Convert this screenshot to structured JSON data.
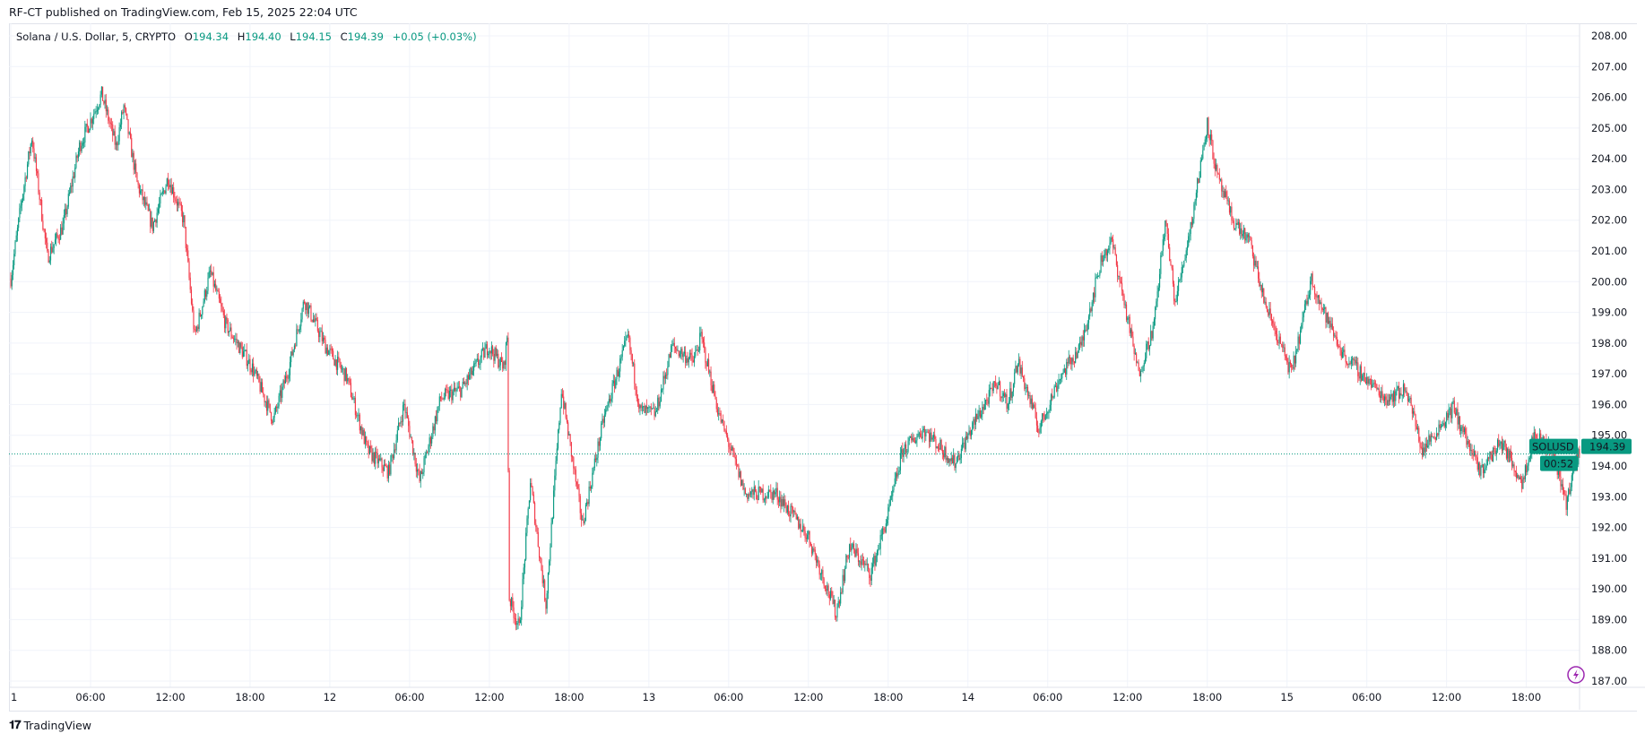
{
  "header": {
    "published": "RF-CT published on TradingView.com, Feb 15, 2025 22:04 UTC"
  },
  "legend": {
    "symbol": "Solana / U.S. Dollar, 5, CRYPTO",
    "open_label": "O",
    "open": "194.34",
    "high_label": "H",
    "high": "194.40",
    "low_label": "L",
    "low": "194.15",
    "close_label": "C",
    "close": "194.39",
    "change": "+0.05 (+0.03%)"
  },
  "price_tag": {
    "symbol": "SOLUSD",
    "price": "194.39",
    "countdown": "00:52"
  },
  "footer": {
    "brand": "TradingView",
    "logo_mark": "TV"
  },
  "colors": {
    "up": "#089981",
    "down": "#F23645",
    "grid": "#f0f3fa",
    "alert_icon": "#9c27b0"
  },
  "icons": {
    "alert": "lightning-icon"
  },
  "chart_data": {
    "type": "candlestick",
    "interval": "5 min",
    "ylim": [
      187,
      208
    ],
    "y_ticks": [
      "187.00",
      "188.00",
      "189.00",
      "190.00",
      "191.00",
      "192.00",
      "193.00",
      "194.00",
      "195.00",
      "196.00",
      "197.00",
      "198.00",
      "199.00",
      "200.00",
      "201.00",
      "202.00",
      "203.00",
      "204.00",
      "205.00",
      "206.00",
      "207.00",
      "208.00"
    ],
    "x_ticks": [
      "1",
      "06:00",
      "12:00",
      "18:00",
      "12",
      "06:00",
      "12:00",
      "18:00",
      "13",
      "06:00",
      "12:00",
      "18:00",
      "14",
      "06:00",
      "12:00",
      "18:00",
      "15",
      "06:00",
      "12:00",
      "18:00"
    ],
    "grid": true,
    "current_price": 194.39,
    "price_path": [
      [
        "11 00:00",
        200.1
      ],
      [
        "11 00:50",
        202.7
      ],
      [
        "11 01:35",
        204.7
      ],
      [
        "11 02:45",
        200.8
      ],
      [
        "11 03:55",
        201.8
      ],
      [
        "11 05:10",
        204.4
      ],
      [
        "11 06:50",
        206.1
      ],
      [
        "11 07:55",
        204.4
      ],
      [
        "11 08:30",
        205.7
      ],
      [
        "11 09:30",
        203.2
      ],
      [
        "11 10:40",
        201.8
      ],
      [
        "11 11:50",
        203.4
      ],
      [
        "11 13:00",
        202.0
      ],
      [
        "11 13:50",
        198.2
      ],
      [
        "11 15:00",
        200.3
      ],
      [
        "11 16:10",
        198.6
      ],
      [
        "11 18:10",
        197.2
      ],
      [
        "11 19:45",
        195.5
      ],
      [
        "11 20:55",
        197.2
      ],
      [
        "11 22:05",
        199.4
      ],
      [
        "11 23:40",
        197.9
      ],
      [
        "12 01:15",
        196.9
      ],
      [
        "12 02:50",
        194.5
      ],
      [
        "12 04:25",
        193.8
      ],
      [
        "12 05:35",
        196.0
      ],
      [
        "12 06:45",
        193.5
      ],
      [
        "12 08:20",
        196.2
      ],
      [
        "12 09:55",
        196.5
      ],
      [
        "12 11:55",
        197.9
      ],
      [
        "12 13:05",
        197.2
      ],
      [
        "12 13:20",
        198.2
      ],
      [
        "12 13:30",
        189.7
      ],
      [
        "12 14:15",
        188.7
      ],
      [
        "12 15:05",
        193.5
      ],
      [
        "12 16:15",
        189.5
      ],
      [
        "12 17:25",
        196.5
      ],
      [
        "12 19:00",
        192.1
      ],
      [
        "12 20:35",
        195.5
      ],
      [
        "12 22:25",
        198.2
      ],
      [
        "12 23:20",
        195.8
      ],
      [
        "13 00:30",
        195.7
      ],
      [
        "13 01:45",
        197.9
      ],
      [
        "13 03:20",
        197.4
      ],
      [
        "13 03:55",
        198.2
      ],
      [
        "13 05:15",
        195.7
      ],
      [
        "13 07:15",
        193.1
      ],
      [
        "13 09:35",
        193.1
      ],
      [
        "13 12:00",
        191.7
      ],
      [
        "13 14:05",
        189.2
      ],
      [
        "13 15:05",
        191.4
      ],
      [
        "13 16:40",
        190.5
      ],
      [
        "13 17:55",
        192.3
      ],
      [
        "13 19:05",
        194.5
      ],
      [
        "13 20:40",
        195.2
      ],
      [
        "13 23:00",
        194.1
      ],
      [
        "14 00:35",
        195.5
      ],
      [
        "14 02:10",
        196.7
      ],
      [
        "14 03:00",
        196.0
      ],
      [
        "14 03:45",
        197.4
      ],
      [
        "14 05:20",
        195.2
      ],
      [
        "14 06:55",
        196.9
      ],
      [
        "14 08:30",
        197.9
      ],
      [
        "14 10:05",
        200.8
      ],
      [
        "14 10:50",
        201.3
      ],
      [
        "14 12:50",
        197.0
      ],
      [
        "14 14:00",
        198.6
      ],
      [
        "14 14:50",
        202.0
      ],
      [
        "14 15:35",
        199.3
      ],
      [
        "14 16:50",
        202.0
      ],
      [
        "14 18:00",
        205.2
      ],
      [
        "14 18:45",
        203.4
      ],
      [
        "14 19:55",
        202.0
      ],
      [
        "14 21:10",
        201.3
      ],
      [
        "14 22:20",
        199.3
      ],
      [
        "15 00:20",
        197.0
      ],
      [
        "15 01:50",
        200.1
      ],
      [
        "15 02:40",
        199.1
      ],
      [
        "15 04:15",
        197.6
      ],
      [
        "15 05:50",
        196.9
      ],
      [
        "15 07:25",
        196.2
      ],
      [
        "15 09:00",
        196.5
      ],
      [
        "15 10:10",
        194.5
      ],
      [
        "15 12:30",
        195.9
      ],
      [
        "15 14:30",
        193.8
      ],
      [
        "15 16:05",
        194.8
      ],
      [
        "15 17:40",
        193.5
      ],
      [
        "15 18:35",
        195.0
      ],
      [
        "15 20:00",
        194.5
      ],
      [
        "15 21:00",
        192.8
      ],
      [
        "15 21:40",
        194.1
      ],
      [
        "15 22:00",
        194.39
      ]
    ]
  }
}
